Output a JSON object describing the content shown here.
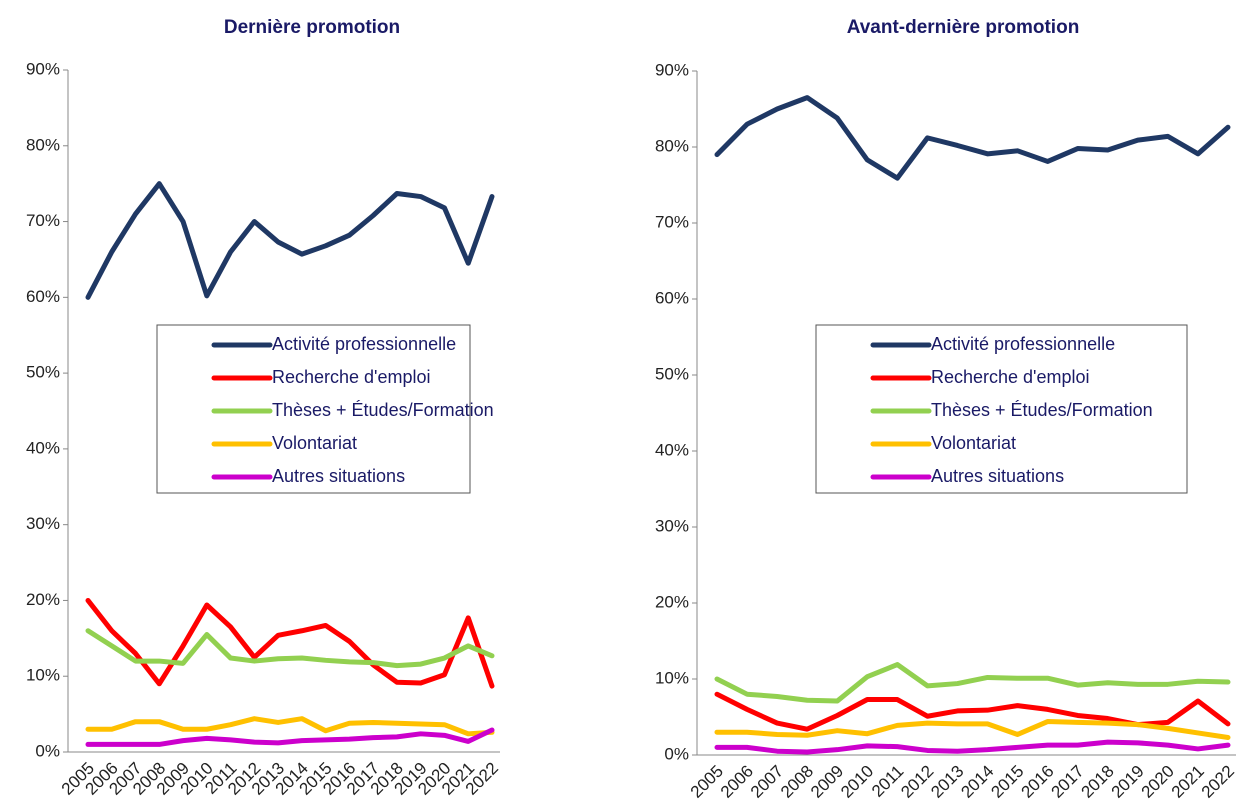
{
  "chart_data": [
    {
      "type": "line",
      "title": "Dernière promotion",
      "categories": [
        "2005",
        "2006",
        "2007",
        "2008",
        "2009",
        "2010",
        "2011",
        "2012",
        "2013",
        "2014",
        "2015",
        "2016",
        "2017",
        "2018",
        "2019",
        "2020",
        "2021",
        "2022"
      ],
      "ylim": [
        0,
        90
      ],
      "yticks": [
        {
          "value": 0,
          "label": "0%"
        },
        {
          "value": 10,
          "label": "10%"
        },
        {
          "value": 20,
          "label": "20%"
        },
        {
          "value": 30,
          "label": "30%"
        },
        {
          "value": 40,
          "label": "40%"
        },
        {
          "value": 50,
          "label": "50%"
        },
        {
          "value": 60,
          "label": "60%"
        },
        {
          "value": 70,
          "label": "70%"
        },
        {
          "value": 80,
          "label": "80%"
        },
        {
          "value": 90,
          "label": "90%"
        }
      ],
      "series": [
        {
          "name": "Activité professionnelle",
          "color": "#1f3864",
          "values": [
            60,
            66,
            71,
            75,
            70,
            60.2,
            66,
            70,
            67.3,
            65.7,
            66.8,
            68.2,
            70.8,
            73.7,
            73.3,
            71.8,
            64.5,
            73.3
          ]
        },
        {
          "name": "Recherche d'emploi",
          "color": "#ff0000",
          "values": [
            20,
            16,
            13,
            9,
            14,
            19.4,
            16.5,
            12.5,
            15.4,
            16,
            16.7,
            14.6,
            11.5,
            9.2,
            9.1,
            10.2,
            17.7,
            8.7
          ]
        },
        {
          "name": "Thèses + Études/Formation",
          "color": "#92d050",
          "values": [
            16,
            14,
            12,
            12,
            11.7,
            15.5,
            12.4,
            12,
            12.3,
            12.4,
            12.1,
            11.9,
            11.8,
            11.4,
            11.6,
            12.4,
            14,
            12.7
          ]
        },
        {
          "name": "Volontariat",
          "color": "#ffc000",
          "values": [
            3,
            3,
            4,
            4,
            3,
            3,
            3.6,
            4.4,
            3.9,
            4.4,
            2.8,
            3.8,
            3.9,
            3.8,
            3.7,
            3.6,
            2.4,
            2.6
          ]
        },
        {
          "name": "Autres situations",
          "color": "#cc00cc",
          "values": [
            1,
            1,
            1,
            1,
            1.5,
            1.8,
            1.6,
            1.3,
            1.2,
            1.5,
            1.6,
            1.7,
            1.9,
            2,
            2.4,
            2.2,
            1.4,
            2.9
          ]
        }
      ]
    },
    {
      "type": "line",
      "title": "Avant-dernière promotion",
      "categories": [
        "2005",
        "2006",
        "2007",
        "2008",
        "2009",
        "2010",
        "2011",
        "2012",
        "2013",
        "2014",
        "2015",
        "2016",
        "2017",
        "2018",
        "2019",
        "2020",
        "2021",
        "2022"
      ],
      "ylim": [
        0,
        90
      ],
      "yticks": [
        {
          "value": 0,
          "label": "0%"
        },
        {
          "value": 10,
          "label": "10%"
        },
        {
          "value": 20,
          "label": "20%"
        },
        {
          "value": 30,
          "label": "30%"
        },
        {
          "value": 40,
          "label": "40%"
        },
        {
          "value": 50,
          "label": "50%"
        },
        {
          "value": 60,
          "label": "60%"
        },
        {
          "value": 70,
          "label": "70%"
        },
        {
          "value": 80,
          "label": "80%"
        },
        {
          "value": 90,
          "label": "90%"
        }
      ],
      "series": [
        {
          "name": "Activité professionnelle",
          "color": "#1f3864",
          "values": [
            79,
            83,
            85,
            86.5,
            83.8,
            78.3,
            75.9,
            81.2,
            80.2,
            79.1,
            79.5,
            78.1,
            79.8,
            79.6,
            80.9,
            81.4,
            79.1,
            82.6
          ]
        },
        {
          "name": "Recherche d'emploi",
          "color": "#ff0000",
          "values": [
            8,
            6,
            4.2,
            3.4,
            5.2,
            7.3,
            7.3,
            5.1,
            5.8,
            5.9,
            6.5,
            6,
            5.2,
            4.8,
            4,
            4.3,
            7.1,
            4.1
          ]
        },
        {
          "name": "Thèses + Études/Formation",
          "color": "#92d050",
          "values": [
            10,
            8,
            7.7,
            7.2,
            7.1,
            10.3,
            11.9,
            9.1,
            9.4,
            10.2,
            10.1,
            10.1,
            9.2,
            9.5,
            9.3,
            9.3,
            9.7,
            9.6
          ]
        },
        {
          "name": "Volontariat",
          "color": "#ffc000",
          "values": [
            3,
            3,
            2.7,
            2.6,
            3.2,
            2.8,
            3.9,
            4.2,
            4.1,
            4.1,
            2.7,
            4.4,
            4.3,
            4.2,
            4,
            3.5,
            2.9,
            2.3
          ]
        },
        {
          "name": "Autres situations",
          "color": "#cc00cc",
          "values": [
            1,
            1,
            0.5,
            0.4,
            0.7,
            1.2,
            1.1,
            0.6,
            0.5,
            0.7,
            1,
            1.3,
            1.3,
            1.7,
            1.6,
            1.3,
            0.8,
            1.3
          ]
        }
      ]
    }
  ]
}
